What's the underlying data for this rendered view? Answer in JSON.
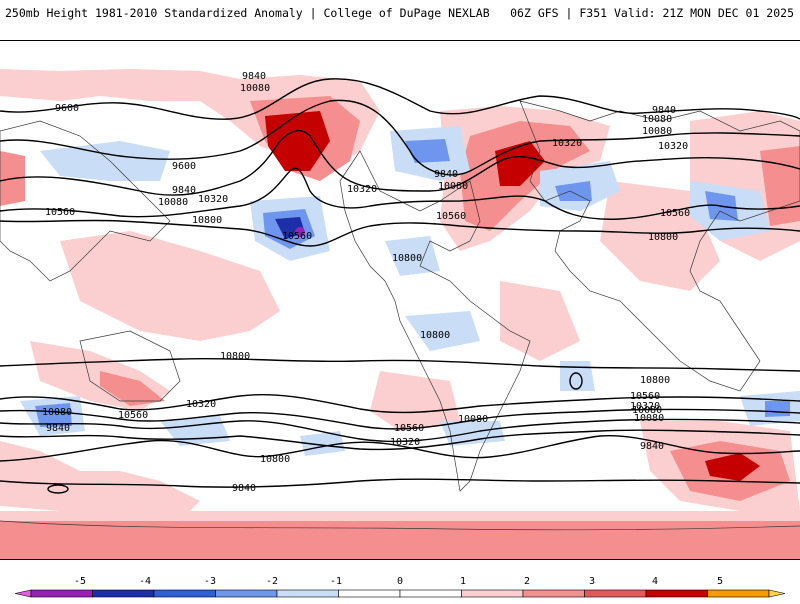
{
  "header": {
    "title_left": "250mb Height 1981-2010 Standardized Anomaly | College of DuPage NEXLAB",
    "title_right": "06Z GFS | F351 Valid: 21Z MON DEC 01 2025"
  },
  "map": {
    "projection": "global-equirectangular",
    "contour_labels": [
      "9840",
      "10080",
      "9600",
      "9600",
      "9840",
      "10080",
      "10320",
      "10560",
      "10800",
      "10560",
      "10800",
      "9840",
      "10080",
      "10320",
      "10320",
      "10080",
      "10560",
      "10800",
      "10800",
      "10800",
      "10080",
      "10560",
      "9840",
      "10320",
      "10080",
      "10560",
      "10320",
      "9840",
      "10800",
      "10560",
      "10320",
      "10080",
      "9840",
      "10800",
      "10080",
      "10320",
      "10560",
      "10080",
      "9840"
    ]
  },
  "colorbar": {
    "tick_labels": [
      "-5",
      "-4",
      "-3",
      "-2",
      "-1",
      "0",
      "1",
      "2",
      "3",
      "4",
      "5"
    ],
    "colors": [
      "#e060e0",
      "#9a1fb8",
      "#1c2fa8",
      "#2f5ed8",
      "#6f96ee",
      "#c9ddf7",
      "#ffffff",
      "#ffffff",
      "#fbcfcf",
      "#f58e8e",
      "#e45858",
      "#c40000",
      "#ff9900",
      "#ffd34d"
    ]
  }
}
